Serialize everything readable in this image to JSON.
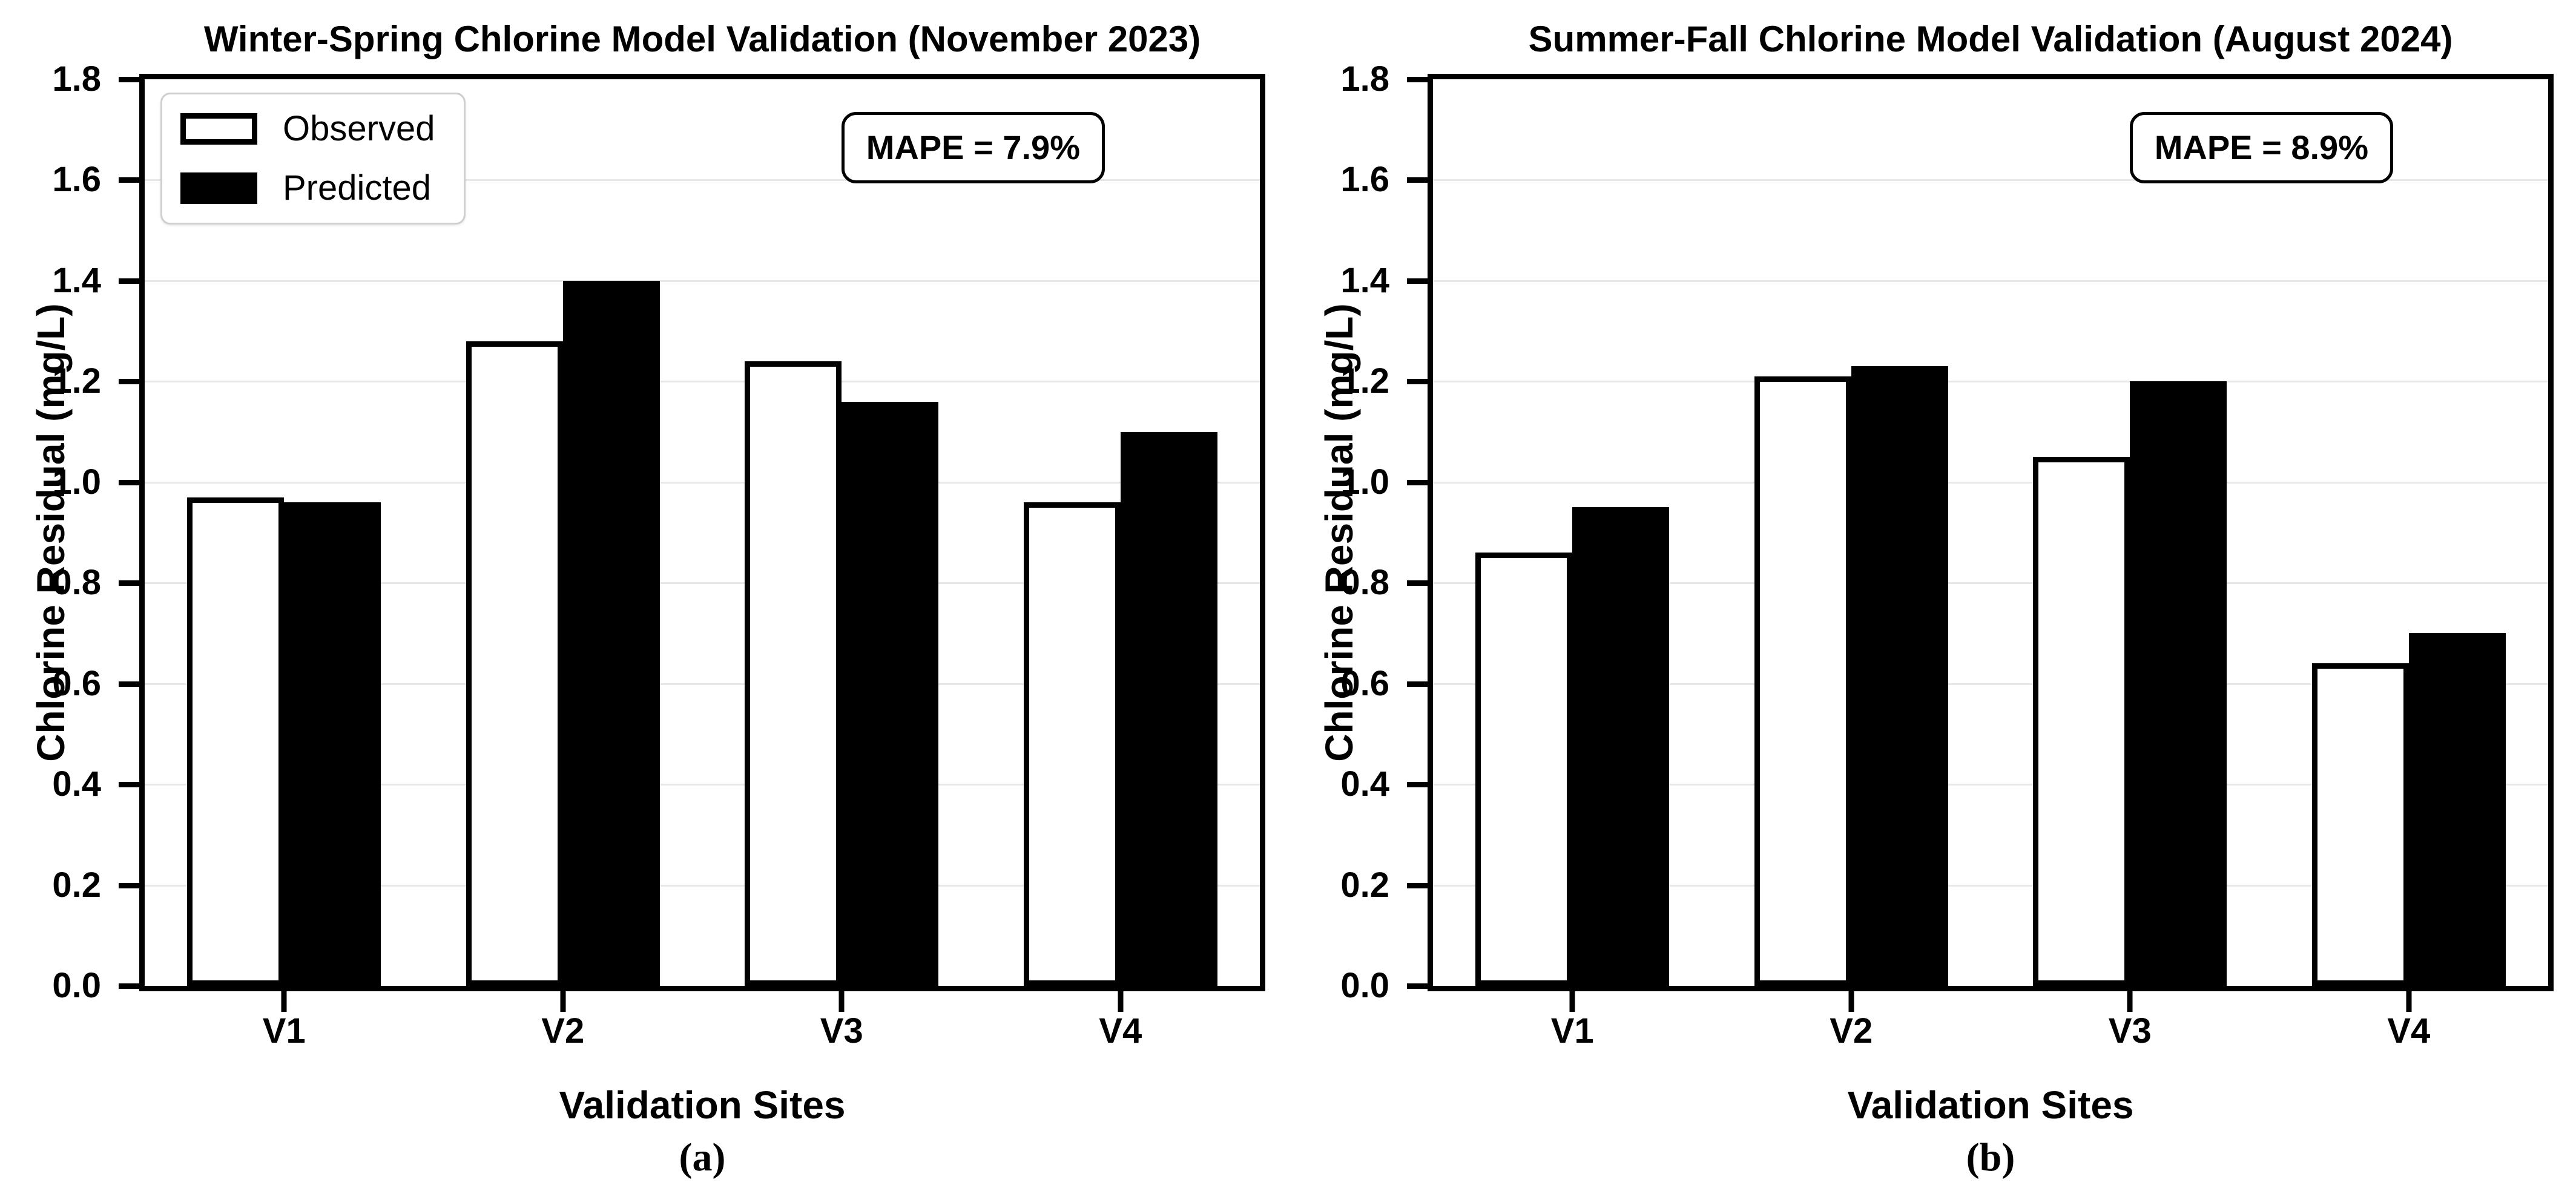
{
  "figure": {
    "background": "#ffffff",
    "colors": {
      "grid": "#e7e7e7",
      "spine": "#000000",
      "text": "#000000",
      "legend_border": "#cfcfcf",
      "observed_fill": "#ffffff",
      "predicted_fill": "#000000"
    }
  },
  "chart_data": [
    {
      "type": "bar",
      "panel_caption": "(a)",
      "title": "Winter-Spring Chlorine Model Validation (November 2023)",
      "xlabel": "Validation Sites",
      "ylabel": "Chlorine Residual (mg/L)",
      "categories": [
        "V1",
        "V2",
        "V3",
        "V4"
      ],
      "series": [
        {
          "name": "Observed",
          "style": "open",
          "fill": "#ffffff",
          "edge": "#000000",
          "values": [
            0.97,
            1.28,
            1.24,
            0.96
          ]
        },
        {
          "name": "Predicted",
          "style": "filled",
          "fill": "#000000",
          "edge": "#000000",
          "values": [
            0.96,
            1.4,
            1.16,
            1.1
          ]
        }
      ],
      "annotation": "MAPE = 7.9%",
      "ylim": [
        0,
        1.8
      ],
      "ytick_step": 0.2,
      "ytick_labels": [
        "0.0",
        "0.2",
        "0.4",
        "0.6",
        "0.8",
        "1.0",
        "1.2",
        "1.4",
        "1.6",
        "1.8"
      ],
      "grid": true,
      "legend": {
        "visible": true,
        "position": "upper left",
        "entries": [
          "Observed",
          "Predicted"
        ]
      }
    },
    {
      "type": "bar",
      "panel_caption": "(b)",
      "title": "Summer-Fall Chlorine Model Validation (August 2024)",
      "xlabel": "Validation Sites",
      "ylabel": "Chlorine Residual (mg/L)",
      "categories": [
        "V1",
        "V2",
        "V3",
        "V4"
      ],
      "series": [
        {
          "name": "Observed",
          "style": "open",
          "fill": "#ffffff",
          "edge": "#000000",
          "values": [
            0.86,
            1.21,
            1.05,
            0.64
          ]
        },
        {
          "name": "Predicted",
          "style": "filled",
          "fill": "#000000",
          "edge": "#000000",
          "values": [
            0.95,
            1.23,
            1.2,
            0.7
          ]
        }
      ],
      "annotation": "MAPE = 8.9%",
      "ylim": [
        0,
        1.8
      ],
      "ytick_step": 0.2,
      "ytick_labels": [
        "0.0",
        "0.2",
        "0.4",
        "0.6",
        "0.8",
        "1.0",
        "1.2",
        "1.4",
        "1.6",
        "1.8"
      ],
      "grid": true,
      "legend": {
        "visible": false,
        "position": null,
        "entries": []
      }
    }
  ]
}
